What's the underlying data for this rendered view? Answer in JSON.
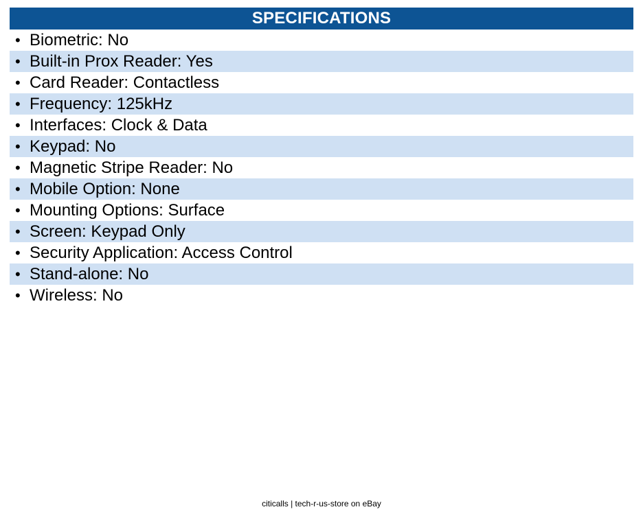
{
  "header": {
    "title": "SPECIFICATIONS"
  },
  "specs": {
    "bullet": "•",
    "items": [
      "Biometric: No",
      "Built-in Prox Reader: Yes",
      "Card Reader: Contactless",
      "Frequency: 125kHz",
      "Interfaces: Clock & Data",
      "Keypad: No",
      "Magnetic Stripe Reader: No",
      "Mobile Option: None",
      "Mounting Options: Surface",
      "Screen: Keypad Only",
      "Security Application: Access Control",
      "Stand-alone: No",
      "Wireless: No"
    ]
  },
  "footer": {
    "text": "citicalls | tech-r-us-store on eBay"
  },
  "colors": {
    "header_background": "#0d5494",
    "header_text": "#ffffff",
    "shaded_row": "#cfe0f3",
    "body_text": "#000000"
  }
}
